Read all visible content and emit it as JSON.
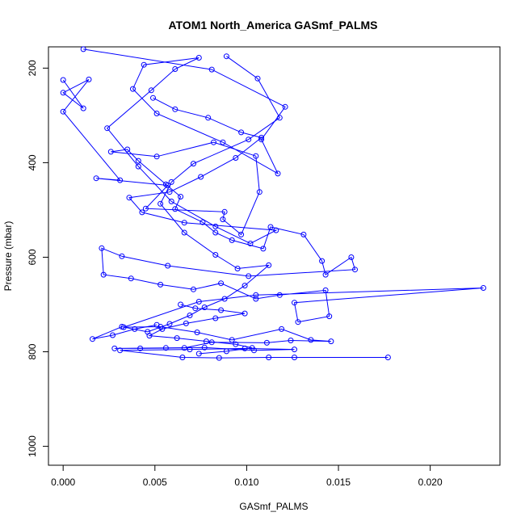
{
  "chart_data": {
    "type": "scatter",
    "title": "ATOM1 North_America GASmf_PALMS",
    "xlabel": "GASmf_PALMS",
    "ylabel": "Pressure (mbar)",
    "xlim": [
      -0.0008,
      0.0238
    ],
    "ylim": [
      1040,
      155
    ],
    "y_reversed": true,
    "x_ticks": [
      "0.000",
      "0.005",
      "0.010",
      "0.015",
      "0.020"
    ],
    "y_ticks": [
      "200",
      "400",
      "600",
      "800",
      "1000"
    ],
    "x_tick_values": [
      0.0,
      0.005,
      0.01,
      0.015,
      0.02
    ],
    "y_tick_values": [
      200,
      400,
      600,
      800,
      1000
    ],
    "grid": false,
    "legend": "none",
    "series_color": "#0000ff",
    "marker": "open-circle",
    "connected": true,
    "series": [
      {
        "x": [
          0.0,
          0.0011,
          0.0,
          0.0014,
          0.0,
          0.0031,
          0.0018,
          0.0057,
          0.0045,
          0.0088,
          0.0087,
          0.0097,
          0.0107,
          0.0105,
          0.0082,
          0.0051,
          0.0026,
          0.0035,
          0.0041,
          0.0056,
          0.0064,
          0.0061,
          0.0076,
          0.0083,
          0.0092,
          0.0109,
          0.0113,
          0.0131,
          0.0141,
          0.0143,
          0.0157,
          0.0159,
          0.0101,
          0.0057,
          0.0032,
          0.0021,
          0.0022,
          0.0037,
          0.0053,
          0.0071,
          0.0086,
          0.0105,
          0.0118,
          0.0143,
          0.0145,
          0.0128,
          0.0126,
          0.0229,
          0.0105,
          0.0074,
          0.0033,
          0.0053,
          0.0073,
          0.0092,
          0.0119,
          0.0135,
          0.0146,
          0.0124,
          0.0111,
          0.0081,
          0.0066,
          0.0042,
          0.0028,
          0.0056,
          0.0077,
          0.0104,
          0.0126,
          0.0099,
          0.0069,
          0.0031,
          0.0065,
          0.0085,
          0.0112,
          0.0126,
          0.0177
        ],
        "y": [
          225,
          285,
          252,
          224,
          292,
          437,
          433,
          448,
          497,
          504,
          520,
          552,
          462,
          386,
          357,
          387,
          377,
          372,
          396,
          446,
          472,
          498,
          526,
          548,
          564,
          582,
          536,
          552,
          608,
          637,
          600,
          626,
          640,
          618,
          598,
          581,
          637,
          645,
          658,
          668,
          655,
          688,
          680,
          670,
          725,
          737,
          696,
          665,
          680,
          694,
          748,
          747,
          759,
          775,
          752,
          775,
          778,
          776,
          781,
          780,
          792,
          793,
          793,
          792,
          791,
          797,
          795,
          793,
          795,
          797,
          812,
          813,
          812,
          812,
          812
        ]
      },
      {
        "x": [
          0.0011,
          0.0081,
          0.0121,
          0.0108,
          0.0117,
          0.0087,
          0.0051,
          0.0038,
          0.0044,
          0.0074,
          0.0061,
          0.0048,
          0.0024,
          0.0041,
          0.0059,
          0.0083,
          0.0102,
          0.0116,
          0.0066,
          0.0043,
          0.0036,
          0.0058,
          0.0075,
          0.0094,
          0.0108,
          0.0097,
          0.0079,
          0.0061,
          0.0049
        ],
        "y": [
          160,
          203,
          282,
          351,
          423,
          357,
          296,
          244,
          193,
          178,
          202,
          247,
          327,
          408,
          482,
          535,
          571,
          543,
          527,
          505,
          474,
          462,
          430,
          390,
          347,
          336,
          305,
          287,
          263
        ]
      },
      {
        "x": [
          0.0089,
          0.0106,
          0.0118,
          0.0101,
          0.0071,
          0.0059,
          0.0053,
          0.0066,
          0.0083,
          0.0095,
          0.0112,
          0.0099,
          0.0088,
          0.0077,
          0.0069,
          0.0058,
          0.0046,
          0.0032,
          0.0016,
          0.0027,
          0.0039,
          0.0051
        ],
        "y": [
          175,
          222,
          305,
          351,
          402,
          441,
          487,
          548,
          595,
          624,
          617,
          660,
          688,
          706,
          723,
          741,
          758,
          747,
          773,
          765,
          752,
          743
        ]
      },
      {
        "x": [
          0.0064,
          0.0072,
          0.0086,
          0.0099,
          0.0083,
          0.0067,
          0.0054,
          0.0047,
          0.0062,
          0.0078,
          0.0094,
          0.0103,
          0.0089,
          0.0074
        ],
        "y": [
          700,
          708,
          712,
          719,
          729,
          740,
          752,
          766,
          771,
          778,
          784,
          792,
          799,
          804
        ]
      }
    ]
  }
}
